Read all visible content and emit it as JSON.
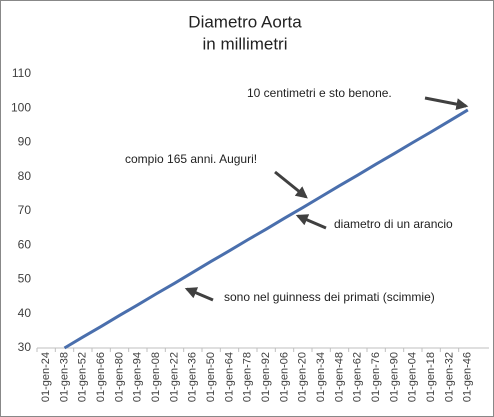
{
  "chart_data": {
    "type": "line",
    "title": [
      "Diametro Aorta",
      "in millimetri"
    ],
    "categories": [
      "01-gen-24",
      "01-gen-38",
      "01-gen-52",
      "01-gen-66",
      "01-gen-80",
      "01-gen-94",
      "01-gen-08",
      "01-gen-22",
      "01-gen-36",
      "01-gen-50",
      "01-gen-64",
      "01-gen-78",
      "01-gen-92",
      "01-gen-06",
      "01-gen-20",
      "01-gen-34",
      "01-gen-48",
      "01-gen-62",
      "01-gen-76",
      "01-gen-90",
      "01-gen-04",
      "01-gen-18",
      "01-gen-32",
      "01-gen-46"
    ],
    "series": [
      {
        "color": "#4a6fad",
        "values": [
          null,
          30,
          33.2,
          36.3,
          39.5,
          42.6,
          45.8,
          48.9,
          52.1,
          55.3,
          58.4,
          61.6,
          64.7,
          67.9,
          71.0,
          74.2,
          77.4,
          80.5,
          83.7,
          86.8,
          90.0,
          93.1,
          96.3,
          99.5
        ]
      }
    ],
    "ylim": [
      30,
      110
    ],
    "yticks": [
      30,
      40,
      50,
      60,
      70,
      80,
      90,
      100,
      110
    ],
    "grid": false,
    "annotations": [
      "10 centimetri e sto benone.",
      "compio 165 anni. Auguri!",
      "diametro di un arancio",
      "sono nel guinness dei primati (scimmie)"
    ]
  }
}
